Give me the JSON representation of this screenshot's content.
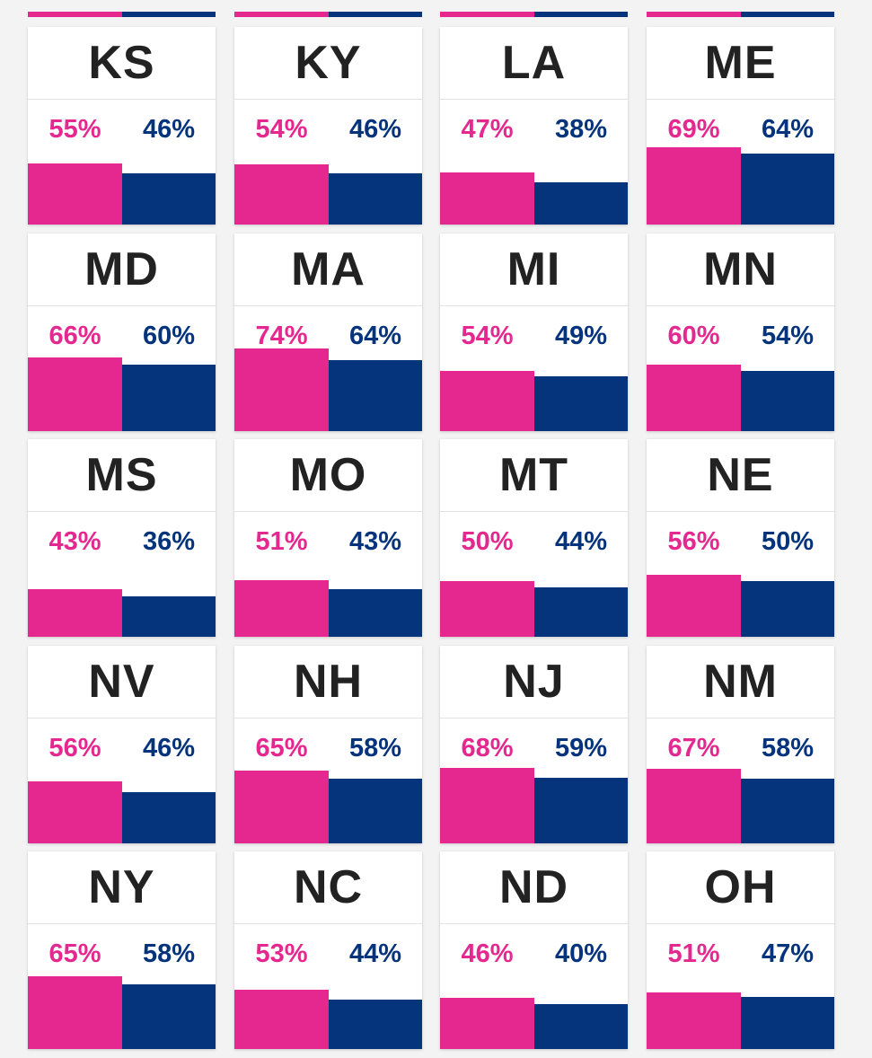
{
  "colors": {
    "female": "#e5288f",
    "male": "#05347d",
    "inside_label": "#ffffff"
  },
  "chart_data": {
    "type": "bar",
    "title": "",
    "series_order": [
      "pink",
      "blue"
    ],
    "states": [
      {
        "state": "KS",
        "values": [
          55,
          46
        ]
      },
      {
        "state": "KY",
        "values": [
          54,
          46
        ]
      },
      {
        "state": "LA",
        "values": [
          47,
          38
        ]
      },
      {
        "state": "ME",
        "values": [
          69,
          64
        ]
      },
      {
        "state": "MD",
        "values": [
          66,
          60
        ]
      },
      {
        "state": "MA",
        "values": [
          74,
          64
        ]
      },
      {
        "state": "MI",
        "values": [
          54,
          49
        ]
      },
      {
        "state": "MN",
        "values": [
          60,
          54
        ]
      },
      {
        "state": "MS",
        "values": [
          43,
          36
        ]
      },
      {
        "state": "MO",
        "values": [
          51,
          43
        ]
      },
      {
        "state": "MT",
        "values": [
          50,
          44
        ]
      },
      {
        "state": "NE",
        "values": [
          56,
          50
        ]
      },
      {
        "state": "NV",
        "values": [
          56,
          46
        ]
      },
      {
        "state": "NH",
        "values": [
          65,
          58
        ]
      },
      {
        "state": "NJ",
        "values": [
          68,
          59
        ]
      },
      {
        "state": "NM",
        "values": [
          67,
          58
        ]
      },
      {
        "state": "NY",
        "values": [
          65,
          58
        ]
      },
      {
        "state": "NC",
        "values": [
          53,
          44
        ]
      },
      {
        "state": "ND",
        "values": [
          46,
          40
        ]
      },
      {
        "state": "OH",
        "values": [
          51,
          47
        ]
      }
    ],
    "labels": [
      {
        "state": "KS",
        "pink": "55%",
        "blue": "46%"
      },
      {
        "state": "KY",
        "pink": "54%",
        "blue": "46%"
      },
      {
        "state": "LA",
        "pink": "47%",
        "blue": "38%"
      },
      {
        "state": "ME",
        "pink": "69%",
        "blue": "64%"
      },
      {
        "state": "MD",
        "pink": "66%",
        "blue": "60%"
      },
      {
        "state": "MA",
        "pink": "74%",
        "blue": "64%"
      },
      {
        "state": "MI",
        "pink": "54%",
        "blue": "49%"
      },
      {
        "state": "MN",
        "pink": "60%",
        "blue": "54%"
      },
      {
        "state": "MS",
        "pink": "43%",
        "blue": "36%"
      },
      {
        "state": "MO",
        "pink": "51%",
        "blue": "43%"
      },
      {
        "state": "MT",
        "pink": "50%",
        "blue": "44%"
      },
      {
        "state": "NE",
        "pink": "56%",
        "blue": "50%"
      },
      {
        "state": "NV",
        "pink": "56%",
        "blue": "46%"
      },
      {
        "state": "NH",
        "pink": "65%",
        "blue": "58%"
      },
      {
        "state": "NJ",
        "pink": "68%",
        "blue": "59%"
      },
      {
        "state": "NM",
        "pink": "67%",
        "blue": "58%"
      },
      {
        "state": "NY",
        "pink": "65%",
        "blue": "58%"
      },
      {
        "state": "NC",
        "pink": "53%",
        "blue": "44%"
      },
      {
        "state": "ND",
        "pink": "46%",
        "blue": "40%"
      },
      {
        "state": "OH",
        "pink": "51%",
        "blue": "47%"
      }
    ],
    "top_partial_row": {
      "pink": [
        55,
        54,
        47,
        69
      ],
      "blue": [
        46,
        46,
        38,
        64
      ]
    }
  }
}
